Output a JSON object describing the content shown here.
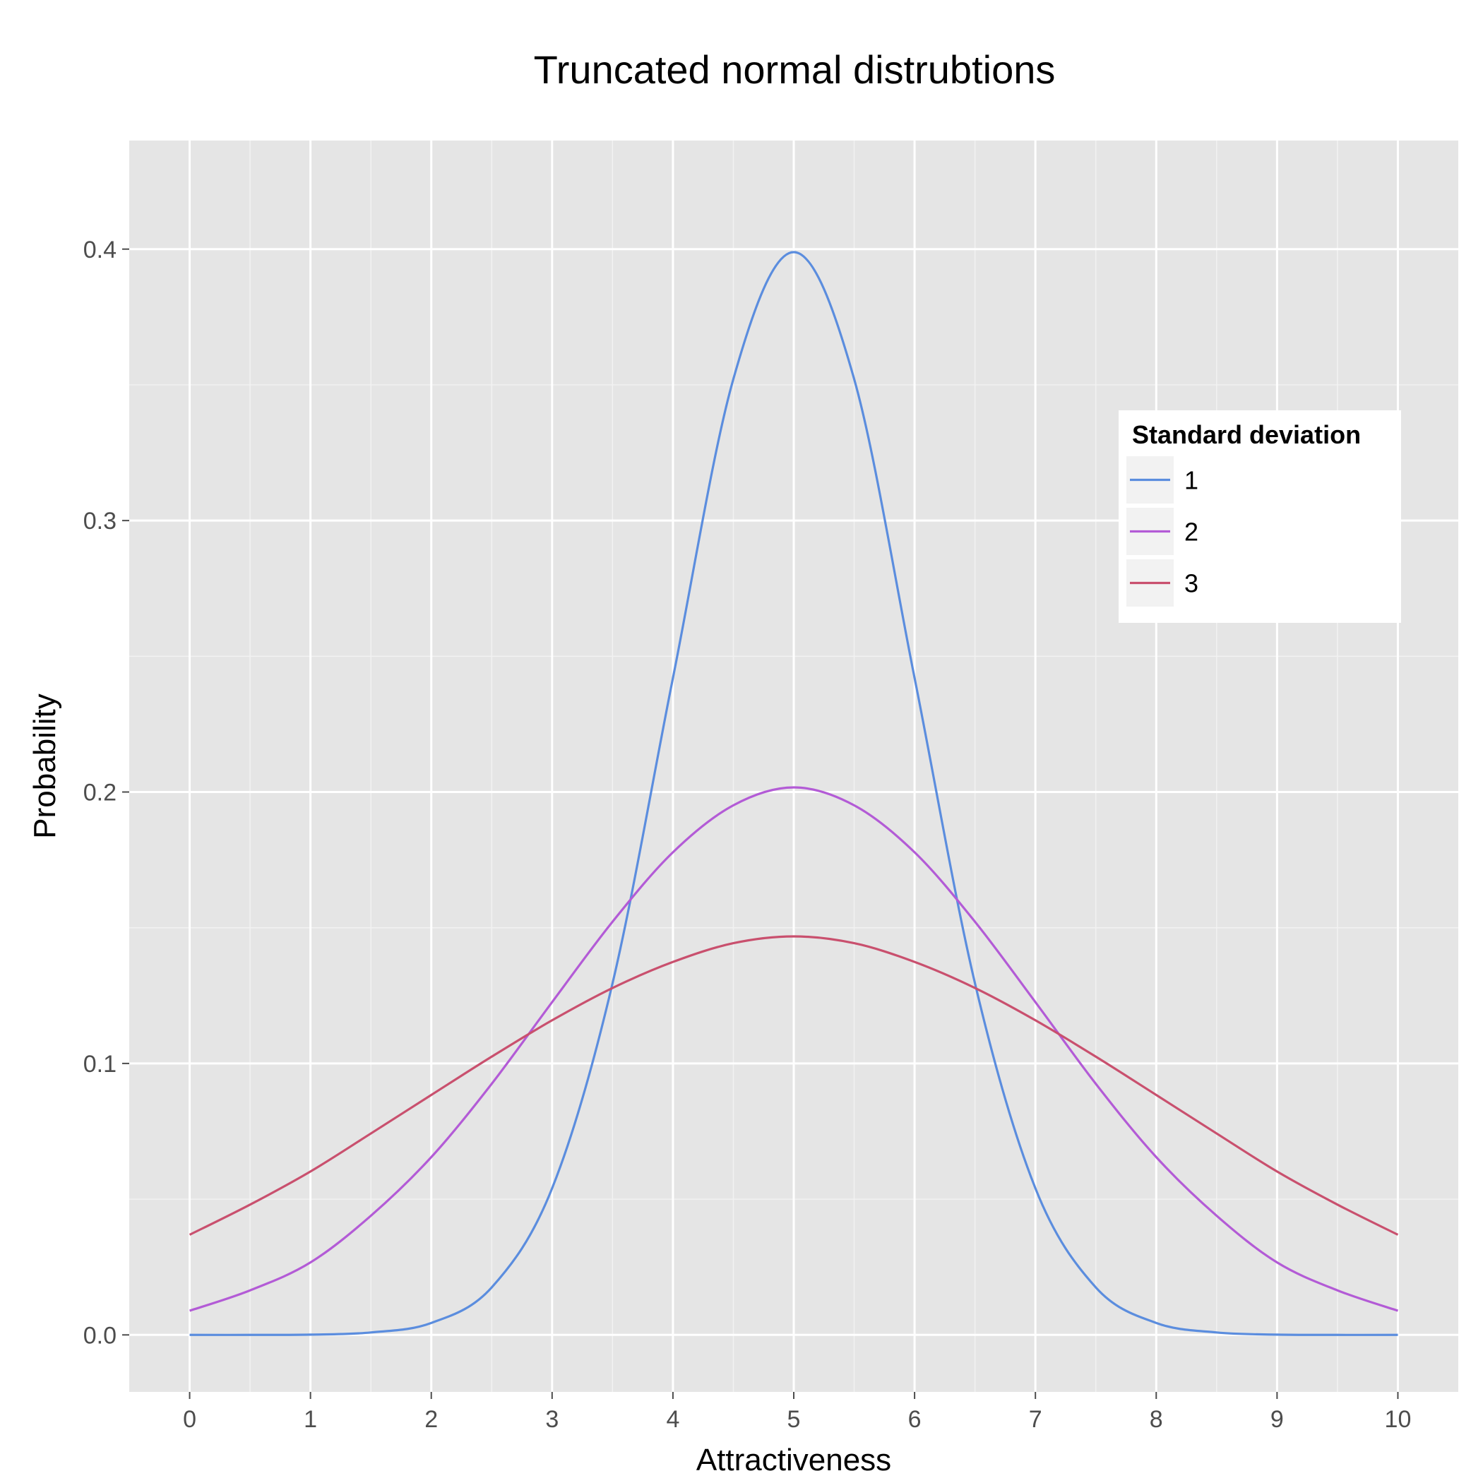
{
  "chart_data": {
    "type": "line",
    "title": "Truncated normal distrubtions",
    "xlabel": "Attractiveness",
    "ylabel": "Probability",
    "xlim": [
      -0.5,
      10.5
    ],
    "ylim": [
      -0.021,
      0.44
    ],
    "x_ticks": [
      0,
      1,
      2,
      3,
      4,
      5,
      6,
      7,
      8,
      9,
      10
    ],
    "x_tick_labels": [
      "0",
      "1",
      "2",
      "3",
      "4",
      "5",
      "6",
      "7",
      "8",
      "9",
      "10"
    ],
    "y_ticks": [
      0.0,
      0.1,
      0.2,
      0.3,
      0.4
    ],
    "y_tick_labels": [
      "0.0",
      "0.1",
      "0.2",
      "0.3",
      "0.4"
    ],
    "grid": true,
    "legend": {
      "title": "Standard deviation",
      "position": "right",
      "entries": [
        "1",
        "2",
        "3"
      ]
    },
    "x": [
      0,
      0.5,
      1,
      1.5,
      2,
      2.5,
      3,
      3.5,
      4,
      4.5,
      5,
      5.5,
      6,
      6.5,
      7,
      7.5,
      8,
      8.5,
      9,
      9.5,
      10
    ],
    "series": [
      {
        "name": "1",
        "color": "#5B8DDE",
        "values": [
          0.0,
          0.0,
          0.0001,
          0.0009,
          0.0044,
          0.0175,
          0.054,
          0.1295,
          0.242,
          0.3521,
          0.3989,
          0.3521,
          0.242,
          0.1295,
          0.054,
          0.0175,
          0.0044,
          0.0009,
          0.0001,
          0.0,
          0.0
        ]
      },
      {
        "name": "2",
        "color": "#B35BD6",
        "values": [
          0.0089,
          0.0164,
          0.0267,
          0.0439,
          0.0655,
          0.0925,
          0.1226,
          0.1522,
          0.1778,
          0.1951,
          0.2017,
          0.1951,
          0.1778,
          0.1522,
          0.1226,
          0.0925,
          0.0655,
          0.0439,
          0.0267,
          0.0164,
          0.0089
        ]
      },
      {
        "name": "3",
        "color": "#C9506E",
        "values": [
          0.0369,
          0.048,
          0.0602,
          0.0742,
          0.0884,
          0.1025,
          0.1159,
          0.1278,
          0.1374,
          0.1443,
          0.1468,
          0.1443,
          0.1374,
          0.1278,
          0.1159,
          0.1025,
          0.0884,
          0.0742,
          0.0602,
          0.048,
          0.0369
        ]
      }
    ]
  }
}
